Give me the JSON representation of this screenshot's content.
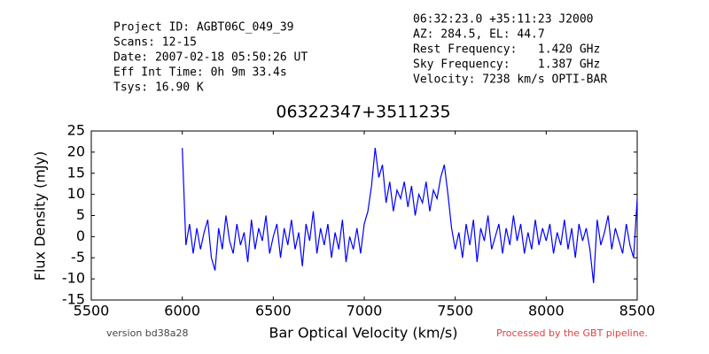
{
  "chart_data": {
    "type": "line",
    "info_left": [
      "Project ID: AGBT06C_049_39",
      "Scans: 12-15",
      "Date: 2007-02-18 05:50:26 UT",
      "Eff Int Time: 0h 9m 33.4s",
      "Tsys: 16.90 K"
    ],
    "info_right": [
      "06:32:23.0 +35:11:23 J2000",
      "AZ: 284.5, EL: 44.7",
      "Rest Frequency:   1.420 GHz",
      "Sky Frequency:    1.387 GHz",
      "Velocity: 7238 km/s OPTI-BAR"
    ],
    "title": "06322347+3511235",
    "xlabel": "Bar Optical Velocity (km/s)",
    "ylabel": "Flux Density (mJy)",
    "footer_left": "version bd38a28",
    "footer_right": "Processed by the GBT pipeline.",
    "xlim": [
      5500,
      8500
    ],
    "xticks": [
      5500,
      6000,
      6500,
      7000,
      7500,
      8000,
      8500
    ],
    "ylim": [
      -15,
      25
    ],
    "yticks": [
      -15,
      -10,
      -5,
      0,
      5,
      10,
      15,
      20,
      25
    ],
    "color": "#0000ff",
    "x": [
      6000,
      6020,
      6040,
      6060,
      6080,
      6100,
      6120,
      6140,
      6160,
      6180,
      6200,
      6220,
      6240,
      6260,
      6280,
      6300,
      6320,
      6340,
      6360,
      6380,
      6400,
      6420,
      6440,
      6460,
      6480,
      6500,
      6520,
      6540,
      6560,
      6580,
      6600,
      6620,
      6640,
      6660,
      6680,
      6700,
      6720,
      6740,
      6760,
      6780,
      6800,
      6820,
      6840,
      6860,
      6880,
      6900,
      6920,
      6940,
      6960,
      6980,
      7000,
      7020,
      7040,
      7060,
      7080,
      7100,
      7120,
      7140,
      7160,
      7180,
      7200,
      7220,
      7240,
      7260,
      7280,
      7300,
      7320,
      7340,
      7360,
      7380,
      7400,
      7420,
      7440,
      7460,
      7480,
      7500,
      7520,
      7540,
      7560,
      7580,
      7600,
      7620,
      7640,
      7660,
      7680,
      7700,
      7720,
      7740,
      7760,
      7780,
      7800,
      7820,
      7840,
      7860,
      7880,
      7900,
      7920,
      7940,
      7960,
      7980,
      8000,
      8020,
      8040,
      8060,
      8080,
      8100,
      8120,
      8140,
      8160,
      8180,
      8200,
      8220,
      8240,
      8260,
      8280,
      8300,
      8320,
      8340,
      8360,
      8380,
      8400,
      8420,
      8440,
      8460,
      8480,
      8500
    ],
    "values": [
      21,
      -2,
      3,
      -4,
      2,
      -3,
      1,
      4,
      -5,
      -8,
      2,
      -3,
      5,
      -1,
      -4,
      3,
      -2,
      1,
      -6,
      4,
      -3,
      2,
      -1,
      5,
      -4,
      0,
      3,
      -5,
      2,
      -2,
      4,
      -3,
      1,
      -7,
      3,
      -1,
      6,
      -4,
      2,
      -2,
      3,
      -5,
      1,
      -3,
      4,
      -6,
      0,
      -3,
      2,
      -4,
      3,
      6,
      12,
      21,
      14,
      17,
      8,
      13,
      6,
      11,
      9,
      13,
      7,
      12,
      5,
      10,
      8,
      13,
      6,
      11,
      9,
      14,
      17,
      10,
      2,
      -3,
      1,
      -5,
      3,
      -2,
      4,
      -6,
      2,
      -1,
      5,
      -3,
      0,
      3,
      -4,
      2,
      -2,
      5,
      -1,
      3,
      -4,
      1,
      -3,
      4,
      -2,
      2,
      -1,
      3,
      -4,
      1,
      -2,
      4,
      -3,
      2,
      -5,
      3,
      -1,
      2,
      -3,
      -11,
      4,
      -2,
      1,
      5,
      -3,
      2,
      -1,
      -4,
      3,
      -2,
      -5,
      9
    ]
  }
}
